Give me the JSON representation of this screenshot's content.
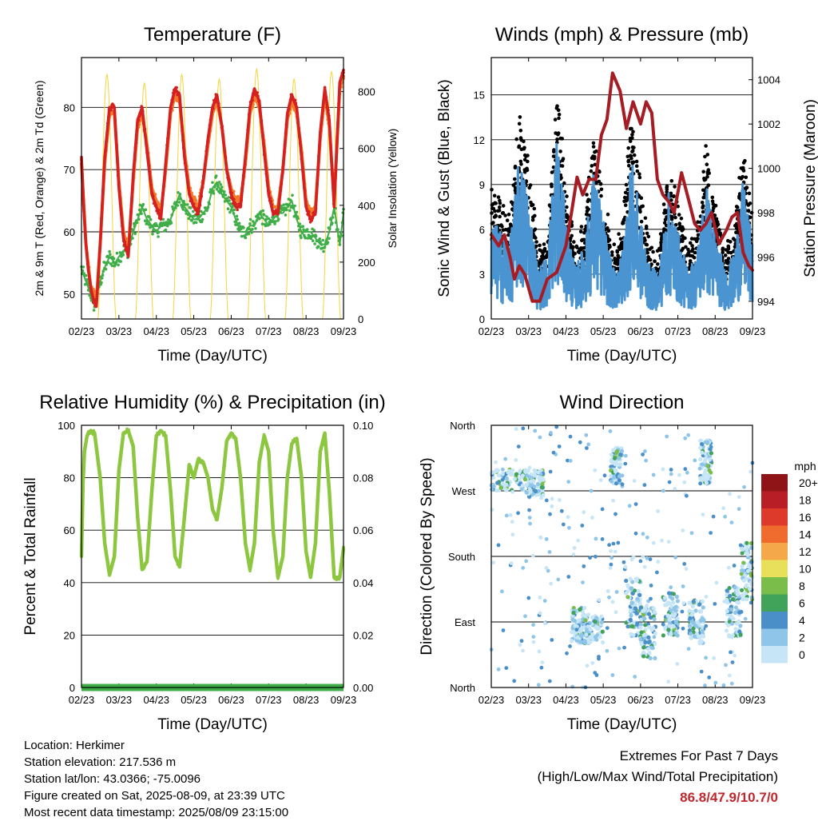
{
  "colors": {
    "temp_2m": "#d62020",
    "temp_9m": "#f07a2a",
    "dewpoint": "#3fae49",
    "solar": "#f5d43a",
    "gust": "#000000",
    "wind": "#4a95d1",
    "pressure": "#a51c24",
    "rh": "#8dc63f",
    "precip": "#3fae49"
  },
  "x_ticks": [
    "02/23",
    "03/23",
    "04/23",
    "05/23",
    "06/23",
    "07/23",
    "08/23",
    "09/23"
  ],
  "chart_data": [
    {
      "id": "temperature",
      "type": "line",
      "title": "Temperature (F)",
      "xlabel": "Time (Day/UTC)",
      "ylabel": "2m & 9m T (Red, Orange) & 2m Td (Green)",
      "y2label": "Solar Insolation (Yellow)",
      "ylim": [
        46,
        88
      ],
      "yticks": [
        50,
        60,
        70,
        80
      ],
      "y2lim": [
        0,
        920
      ],
      "y2ticks": [
        0,
        200,
        400,
        600,
        800
      ],
      "series": [
        {
          "key": "t2m",
          "x": [
            0,
            0.06,
            0.12,
            0.18,
            0.25,
            0.32,
            0.4,
            0.5,
            0.62,
            0.75,
            0.88,
            1,
            1.12,
            1.25,
            1.38,
            1.5,
            1.62,
            1.75,
            1.88,
            2,
            2.12,
            2.25,
            2.38,
            2.5,
            2.62,
            2.75,
            2.88,
            3,
            3.12,
            3.25,
            3.38,
            3.5,
            3.62,
            3.75,
            3.88,
            4,
            4.12,
            4.25,
            4.38,
            4.5,
            4.62,
            4.75,
            4.88,
            5,
            5.12,
            5.25,
            5.38,
            5.5,
            5.62,
            5.75,
            5.88,
            6,
            6.12,
            6.25,
            6.38,
            6.5,
            6.62,
            6.75,
            6.9,
            7
          ],
          "y": [
            72,
            64,
            58,
            54,
            51,
            49,
            48,
            58,
            72,
            80,
            80,
            67,
            59,
            56,
            69,
            78,
            80,
            73,
            66,
            64,
            62,
            71,
            80,
            83,
            82,
            72,
            66,
            64,
            63,
            68,
            75,
            80,
            82,
            77,
            70,
            66,
            64,
            64,
            72,
            80,
            83,
            81,
            73,
            66,
            63,
            63,
            70,
            79,
            82,
            80,
            72,
            64,
            62,
            63,
            76,
            83,
            78,
            64,
            84,
            86
          ]
        },
        {
          "key": "t9m",
          "x": [
            0,
            0.12,
            0.25,
            0.4,
            0.5,
            0.62,
            0.75,
            0.88,
            1,
            1.12,
            1.25,
            1.38,
            1.5,
            1.62,
            1.75,
            1.88,
            2,
            2.12,
            2.25,
            2.38,
            2.5,
            2.62,
            2.75,
            2.88,
            3,
            3.12,
            3.25,
            3.38,
            3.5,
            3.62,
            3.75,
            3.88,
            4,
            4.12,
            4.25,
            4.38,
            4.5,
            4.62,
            4.75,
            4.88,
            5,
            5.12,
            5.25,
            5.38,
            5.5,
            5.62,
            5.75,
            5.88,
            6,
            6.12,
            6.25,
            6.38,
            6.5,
            6.62,
            6.75,
            6.9,
            7
          ],
          "y": [
            71,
            58,
            51,
            49,
            58,
            71,
            79,
            79,
            68,
            60,
            57,
            68,
            77,
            79,
            74,
            67,
            65,
            63,
            70,
            79,
            82,
            81,
            73,
            67,
            65,
            64,
            68,
            74,
            79,
            81,
            77,
            70,
            67,
            65,
            65,
            71,
            79,
            82,
            80,
            74,
            67,
            64,
            64,
            70,
            78,
            81,
            79,
            73,
            65,
            63,
            64,
            75,
            82,
            77,
            65,
            83,
            85
          ]
        },
        {
          "key": "td2m",
          "x": [
            0,
            0.12,
            0.25,
            0.35,
            0.45,
            0.6,
            0.75,
            0.9,
            1,
            1.12,
            1.25,
            1.38,
            1.5,
            1.62,
            1.75,
            1.88,
            2,
            2.12,
            2.25,
            2.38,
            2.5,
            2.62,
            2.75,
            2.88,
            3,
            3.12,
            3.25,
            3.38,
            3.5,
            3.62,
            3.75,
            3.88,
            4,
            4.12,
            4.25,
            4.38,
            4.5,
            4.62,
            4.75,
            4.88,
            5,
            5.12,
            5.25,
            5.38,
            5.5,
            5.62,
            5.75,
            5.88,
            6,
            6.12,
            6.25,
            6.38,
            6.5,
            6.62,
            6.75,
            6.9,
            7
          ],
          "y": [
            54,
            52,
            50,
            48,
            51,
            54,
            56,
            55,
            56,
            57,
            57,
            60,
            62,
            64,
            62,
            61,
            60,
            61,
            61,
            62,
            64,
            66,
            64,
            63,
            62,
            62,
            63,
            64,
            67,
            68,
            66,
            65,
            64,
            62,
            60,
            60,
            61,
            61,
            63,
            62,
            61,
            62,
            63,
            63,
            64,
            65,
            62,
            60,
            60,
            60,
            59,
            58,
            58,
            60,
            64,
            58,
            63
          ]
        },
        {
          "key": "solar",
          "daylight": [
            0.44,
            0.92
          ],
          "peaks": [
            860,
            830,
            860,
            845,
            880,
            845,
            870,
            880
          ]
        }
      ]
    },
    {
      "id": "winds",
      "type": "scatter",
      "title": "Winds (mph) & Pressure (mb)",
      "xlabel": "Time (Day/UTC)",
      "ylabel": "Sonic Wind & Gust (Blue, Black)",
      "y2label": "Station Pressure (Maroon)",
      "ylim": [
        0,
        17.5
      ],
      "yticks": [
        0,
        3,
        6,
        9,
        12,
        15
      ],
      "y2lim": [
        993.2,
        1005
      ],
      "y2ticks": [
        994,
        996,
        998,
        1000,
        1002,
        1004
      ],
      "series": [
        {
          "key": "wind_mean",
          "x": [
            0,
            0.25,
            0.5,
            0.75,
            1,
            1.25,
            1.5,
            1.75,
            2,
            2.25,
            2.5,
            2.75,
            3,
            3.25,
            3.5,
            3.75,
            4,
            4.25,
            4.5,
            4.75,
            5,
            5.25,
            5.5,
            5.75,
            6,
            6.25,
            6.5,
            6.75,
            7
          ],
          "y": [
            4,
            3.5,
            3,
            6.5,
            5,
            2,
            2.5,
            7.5,
            4,
            2,
            3,
            6,
            4,
            2,
            2.5,
            6.5,
            4,
            2,
            2,
            5,
            3.5,
            2,
            2.5,
            5.5,
            3.5,
            2,
            2.5,
            5.5,
            3
          ]
        },
        {
          "key": "pressure",
          "x": [
            0,
            0.2,
            0.35,
            0.5,
            0.62,
            0.75,
            0.9,
            1.1,
            1.3,
            1.5,
            1.75,
            2,
            2.15,
            2.3,
            2.45,
            2.62,
            2.8,
            2.95,
            3.1,
            3.25,
            3.45,
            3.62,
            3.8,
            4,
            4.15,
            4.3,
            4.45,
            4.6,
            4.75,
            4.9,
            5.1,
            5.3,
            5.45,
            5.6,
            5.75,
            5.9,
            6.1,
            6.3,
            6.45,
            6.6,
            6.75,
            6.9,
            7
          ],
          "y": [
            997,
            996.5,
            997,
            996,
            995,
            995.6,
            995.2,
            994,
            994,
            995,
            995.3,
            996.5,
            998,
            999.6,
            998.8,
            999.5,
            999.5,
            1001.5,
            1002.2,
            1004.3,
            1003.5,
            1001.8,
            1003,
            1002,
            1003,
            1002.5,
            999.5,
            998.8,
            998.5,
            998,
            999.8,
            998.5,
            997.5,
            997.2,
            997.5,
            998,
            996.6,
            997.2,
            997.8,
            998,
            996.2,
            995.6,
            995.4
          ]
        }
      ]
    },
    {
      "id": "humidity",
      "type": "line",
      "title": "Relative Humidity (%) & Precipitation (in)",
      "xlabel": "Time (Day/UTC)",
      "ylabel": "Percent & Total Rainfall",
      "ylim": [
        0,
        100
      ],
      "yticks": [
        0,
        20,
        40,
        60,
        80,
        100
      ],
      "y2lim": [
        0,
        0.1
      ],
      "y2ticks": [
        "0.00",
        "0.02",
        "0.04",
        "0.06",
        "0.08",
        "0.10"
      ],
      "series": [
        {
          "key": "rh",
          "x": [
            0,
            0.04,
            0.08,
            0.15,
            0.25,
            0.35,
            0.5,
            0.62,
            0.75,
            0.88,
            1,
            1.12,
            1.25,
            1.38,
            1.5,
            1.62,
            1.75,
            1.88,
            2,
            2.12,
            2.25,
            2.38,
            2.5,
            2.62,
            2.75,
            2.88,
            3,
            3.12,
            3.25,
            3.38,
            3.5,
            3.62,
            3.75,
            3.88,
            4,
            4.12,
            4.25,
            4.38,
            4.5,
            4.62,
            4.75,
            4.88,
            5,
            5.12,
            5.25,
            5.38,
            5.5,
            5.62,
            5.75,
            5.88,
            6,
            6.12,
            6.25,
            6.38,
            6.5,
            6.62,
            6.75,
            6.9,
            7
          ],
          "y": [
            50,
            78,
            90,
            96,
            98,
            97,
            80,
            55,
            43,
            50,
            83,
            97,
            98,
            92,
            65,
            45,
            48,
            75,
            96,
            98,
            96,
            75,
            50,
            46,
            65,
            85,
            80,
            87,
            86,
            80,
            68,
            64,
            76,
            94,
            97,
            95,
            80,
            55,
            45,
            55,
            86,
            96,
            90,
            60,
            42,
            50,
            80,
            93,
            95,
            80,
            52,
            42,
            55,
            90,
            97,
            75,
            42,
            42,
            53
          ]
        },
        {
          "key": "precip",
          "x": [
            0,
            7
          ],
          "y": [
            0,
            0
          ]
        }
      ]
    },
    {
      "id": "direction",
      "type": "scatter",
      "title": "Wind Direction",
      "xlabel": "Time (Day/UTC)",
      "ylabel": "Direction (Colored By Speed)",
      "yticks": [
        "North",
        "East",
        "South",
        "West",
        "North"
      ],
      "legend_title": "mph",
      "legend_labels": [
        "0",
        "2",
        "4",
        "6",
        "8",
        "10",
        "12",
        "14",
        "16",
        "18",
        "20+"
      ],
      "legend_colors": [
        "#c6e6f7",
        "#8ec5e8",
        "#4a8fc8",
        "#41a25a",
        "#7bbd4b",
        "#e8df5b",
        "#f5a84a",
        "#ef6c2e",
        "#dd3a2b",
        "#b81e25",
        "#8e1418"
      ],
      "clusters": [
        {
          "x": [
            0,
            0.9
          ],
          "dir": [
            270,
            300
          ]
        },
        {
          "x": [
            0.9,
            1.4
          ],
          "dir": [
            260,
            300
          ]
        },
        {
          "x": [
            2.15,
            2.5
          ],
          "dir": [
            60,
            110
          ]
        },
        {
          "x": [
            2.5,
            3.0
          ],
          "dir": [
            60,
            100
          ]
        },
        {
          "x": [
            3.2,
            3.5
          ],
          "dir": [
            280,
            330
          ]
        },
        {
          "x": [
            3.6,
            4.0
          ],
          "dir": [
            70,
            150
          ]
        },
        {
          "x": [
            4.0,
            4.4
          ],
          "dir": [
            40,
            110
          ]
        },
        {
          "x": [
            4.6,
            5.0
          ],
          "dir": [
            70,
            130
          ]
        },
        {
          "x": [
            5.6,
            5.9
          ],
          "dir": [
            280,
            340
          ]
        },
        {
          "x": [
            5.3,
            5.7
          ],
          "dir": [
            60,
            120
          ]
        },
        {
          "x": [
            6.3,
            6.7
          ],
          "dir": [
            70,
            140
          ]
        },
        {
          "x": [
            6.7,
            7.0
          ],
          "dir": [
            120,
            200
          ]
        }
      ]
    }
  ],
  "info": {
    "location": "Location: Herkimer",
    "elevation": "Station elevation: 217.536 m",
    "latlon": "Station lat/lon: 43.0366; -75.0096",
    "created": "Figure created on Sat, 2025-08-09, at 23:39 UTC",
    "recent": "Most recent data timestamp: 2025/08/09 23:15:00"
  },
  "extremes": {
    "title": "Extremes For Past 7 Days",
    "subtitle": "(High/Low/Max Wind/Total Precipitation)",
    "values": "86.8/47.9/10.7/0"
  }
}
